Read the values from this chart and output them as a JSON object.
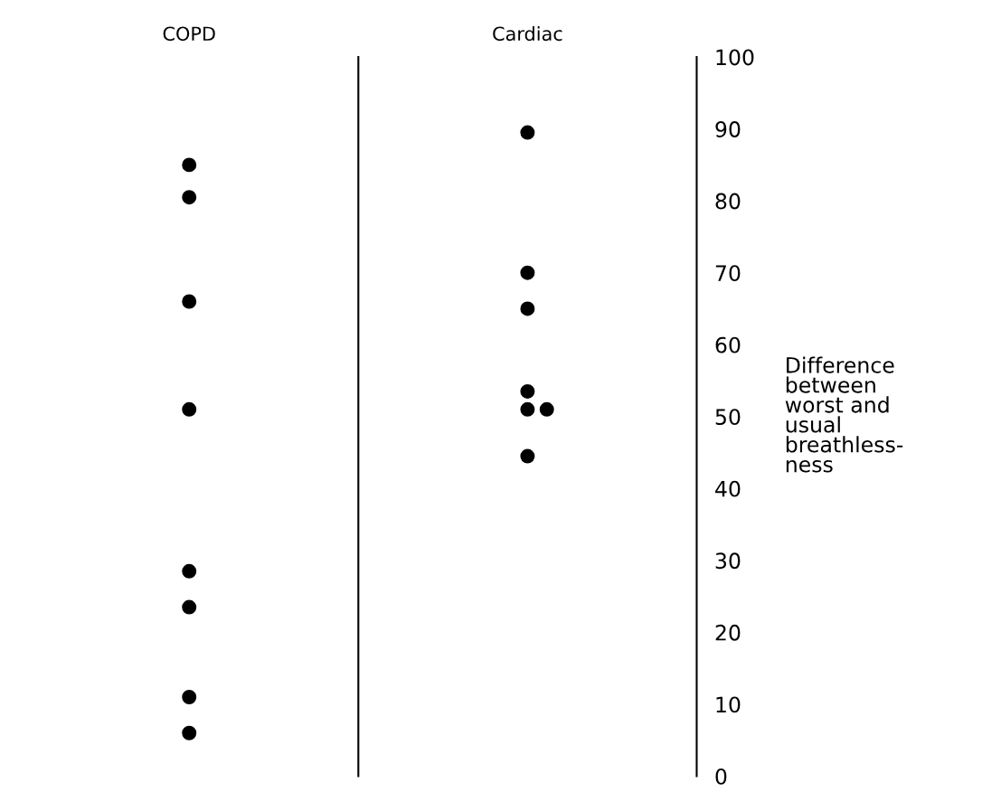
{
  "chart_data": {
    "type": "scatter",
    "categories": [
      "COPD",
      "Cardiac"
    ],
    "ylabel": "Difference\nbetween\nworst and\nusual\nbreathless-\nness",
    "ylim": [
      0,
      100
    ],
    "yticks": [
      0,
      10,
      20,
      30,
      40,
      50,
      60,
      70,
      80,
      90,
      100
    ],
    "series": [
      {
        "color": "#000000",
        "x": [
          "COPD",
          "COPD",
          "COPD",
          "COPD",
          "COPD",
          "COPD",
          "COPD",
          "COPD"
        ],
        "values": [
          85,
          80.5,
          66,
          51,
          28.5,
          23.5,
          11,
          6
        ]
      },
      {
        "color": "#000000",
        "x": [
          "Cardiac",
          "Cardiac",
          "Cardiac",
          "Cardiac",
          "Cardiac",
          "Cardiac",
          "Cardiac"
        ],
        "values": [
          89.5,
          70,
          65,
          53.5,
          51,
          51,
          44.5
        ]
      }
    ],
    "marker": "circle",
    "grid": false
  }
}
